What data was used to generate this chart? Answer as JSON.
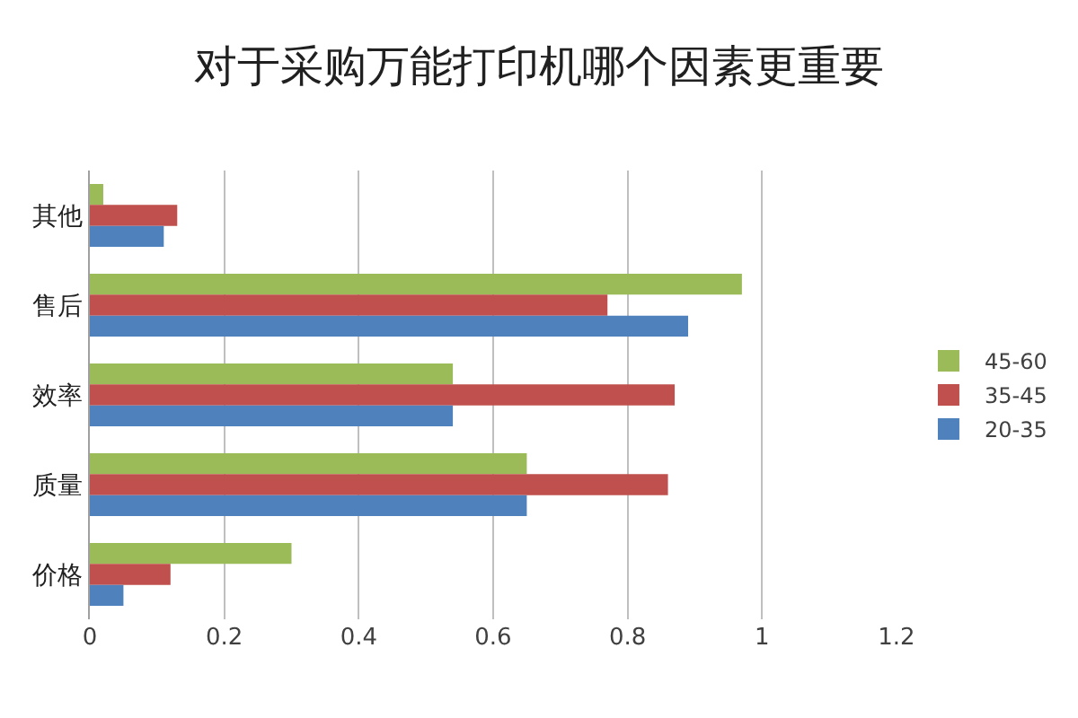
{
  "chart_data": {
    "type": "bar",
    "orientation": "horizontal",
    "title": "对于采购万能打印机哪个因素更重要",
    "categories": [
      "其他",
      "售后",
      "效率",
      "质量",
      "价格"
    ],
    "series": [
      {
        "name": "45-60",
        "color": "#9bbb59",
        "values": [
          0.02,
          0.97,
          0.54,
          0.65,
          0.3
        ]
      },
      {
        "name": "35-45",
        "color": "#c0504d",
        "values": [
          0.13,
          0.77,
          0.87,
          0.86,
          0.12
        ]
      },
      {
        "name": "20-35",
        "color": "#4f81bd",
        "values": [
          0.11,
          0.89,
          0.54,
          0.65,
          0.05
        ]
      }
    ],
    "xlim": [
      0,
      1.2
    ],
    "xticks": [
      0,
      0.2,
      0.4,
      0.6,
      0.8,
      1,
      1.2
    ],
    "grid": "x",
    "legend": "right"
  }
}
